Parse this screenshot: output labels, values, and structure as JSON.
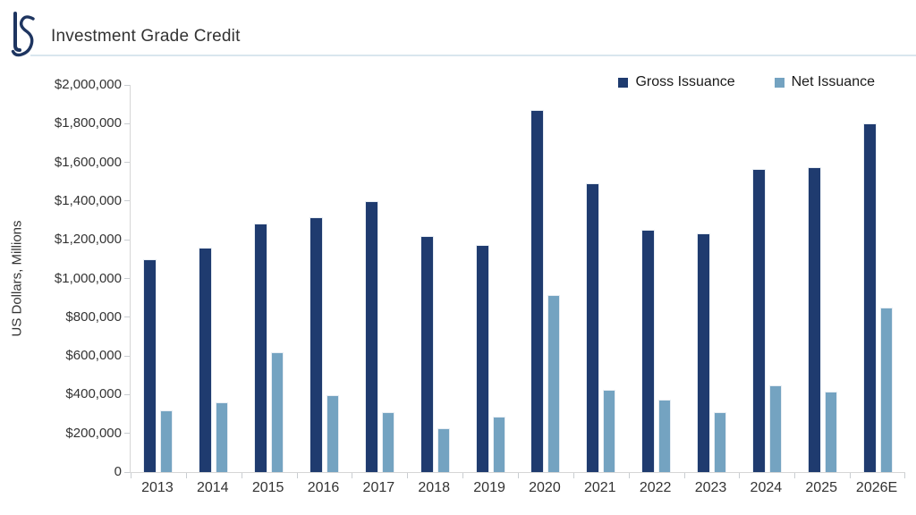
{
  "header": {
    "title": "Investment Grade Credit",
    "logo": "LS-monogram"
  },
  "colors": {
    "gross": "#1F3B6F",
    "net": "#74A3C1",
    "divider": "#D9E6EE",
    "axis": "#D6D6D6",
    "logo_navy": "#1E3560"
  },
  "legend": {
    "items": [
      {
        "label": "Gross Issuance",
        "color": "#1F3B6F"
      },
      {
        "label": "Net Issuance",
        "color": "#74A3C1"
      }
    ]
  },
  "chart_data": {
    "type": "bar",
    "title": "Investment Grade Credit",
    "categories": [
      "2013",
      "2014",
      "2015",
      "2016",
      "2017",
      "2018",
      "2019",
      "2020",
      "2021",
      "2022",
      "2023",
      "2024",
      "2025",
      "2026E"
    ],
    "series": [
      {
        "name": "Gross Issuance",
        "color": "#1F3B6F",
        "values": [
          1100000,
          1160000,
          1285000,
          1315000,
          1400000,
          1220000,
          1175000,
          1870000,
          1490000,
          1250000,
          1235000,
          1565000,
          1575000,
          1800000
        ]
      },
      {
        "name": "Net Issuance",
        "color": "#74A3C1",
        "values": [
          320000,
          360000,
          620000,
          395000,
          310000,
          225000,
          285000,
          915000,
          425000,
          375000,
          310000,
          450000,
          415000,
          850000
        ]
      }
    ],
    "xlabel": "",
    "ylabel": "US Dollars, Millions",
    "ylim": [
      0,
      2000000
    ],
    "ytick_interval": 200000,
    "ytick_labels": [
      "$2,000,000",
      "$1,800,000",
      "$1,600,000",
      "$1,400,000",
      "$1,200,000",
      "$1,000,000",
      "$800,000",
      "$600,000",
      "$400,000",
      "$200,000",
      "0"
    ],
    "grid": false,
    "legend_position": "top-right"
  }
}
